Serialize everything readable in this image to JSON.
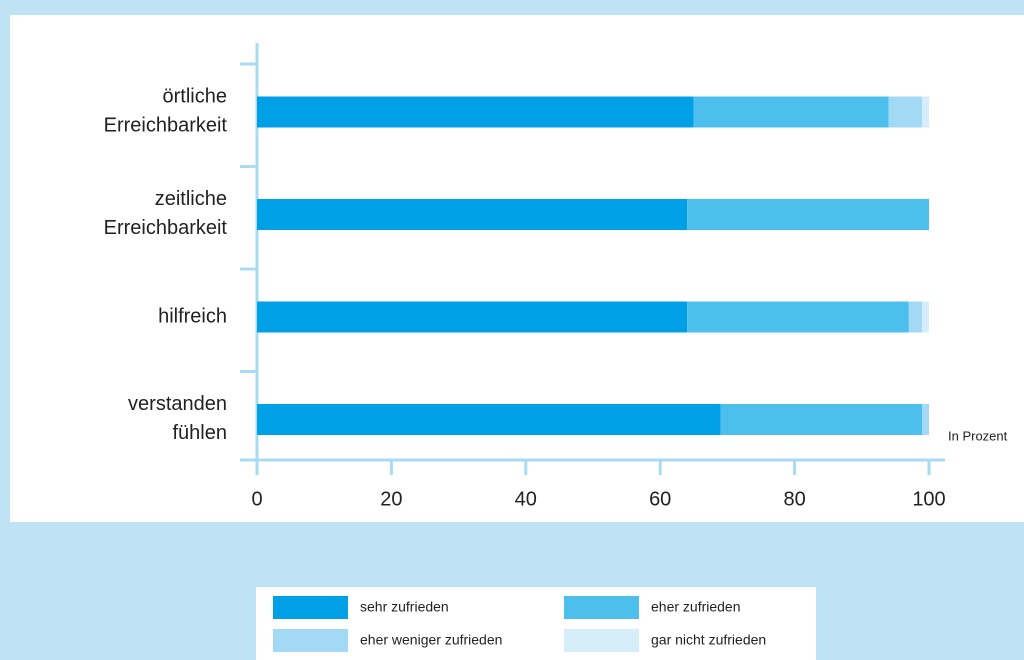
{
  "chart_data": {
    "type": "stacked-barh",
    "categories": [
      "örtliche Erreichbarkeit",
      "zeitliche Erreichbarkeit",
      "hilfreich",
      "verstanden fühlen"
    ],
    "series": [
      {
        "name": "sehr zufrieden",
        "color": "#00a0e6",
        "values": [
          65,
          64,
          64,
          69
        ]
      },
      {
        "name": "eher zufrieden",
        "color": "#4cbfed",
        "values": [
          29,
          36,
          33,
          30
        ]
      },
      {
        "name": "eher weniger zufrieden",
        "color": "#a3d9f5",
        "values": [
          5,
          0,
          2,
          1
        ]
      },
      {
        "name": "gar nicht zufrieden",
        "color": "#d6eefa",
        "values": [
          1,
          0,
          1,
          0
        ]
      }
    ],
    "xlim": [
      0,
      100
    ],
    "xticks": [
      0,
      20,
      40,
      60,
      80,
      100
    ],
    "x_axis_label": "In Prozent"
  }
}
